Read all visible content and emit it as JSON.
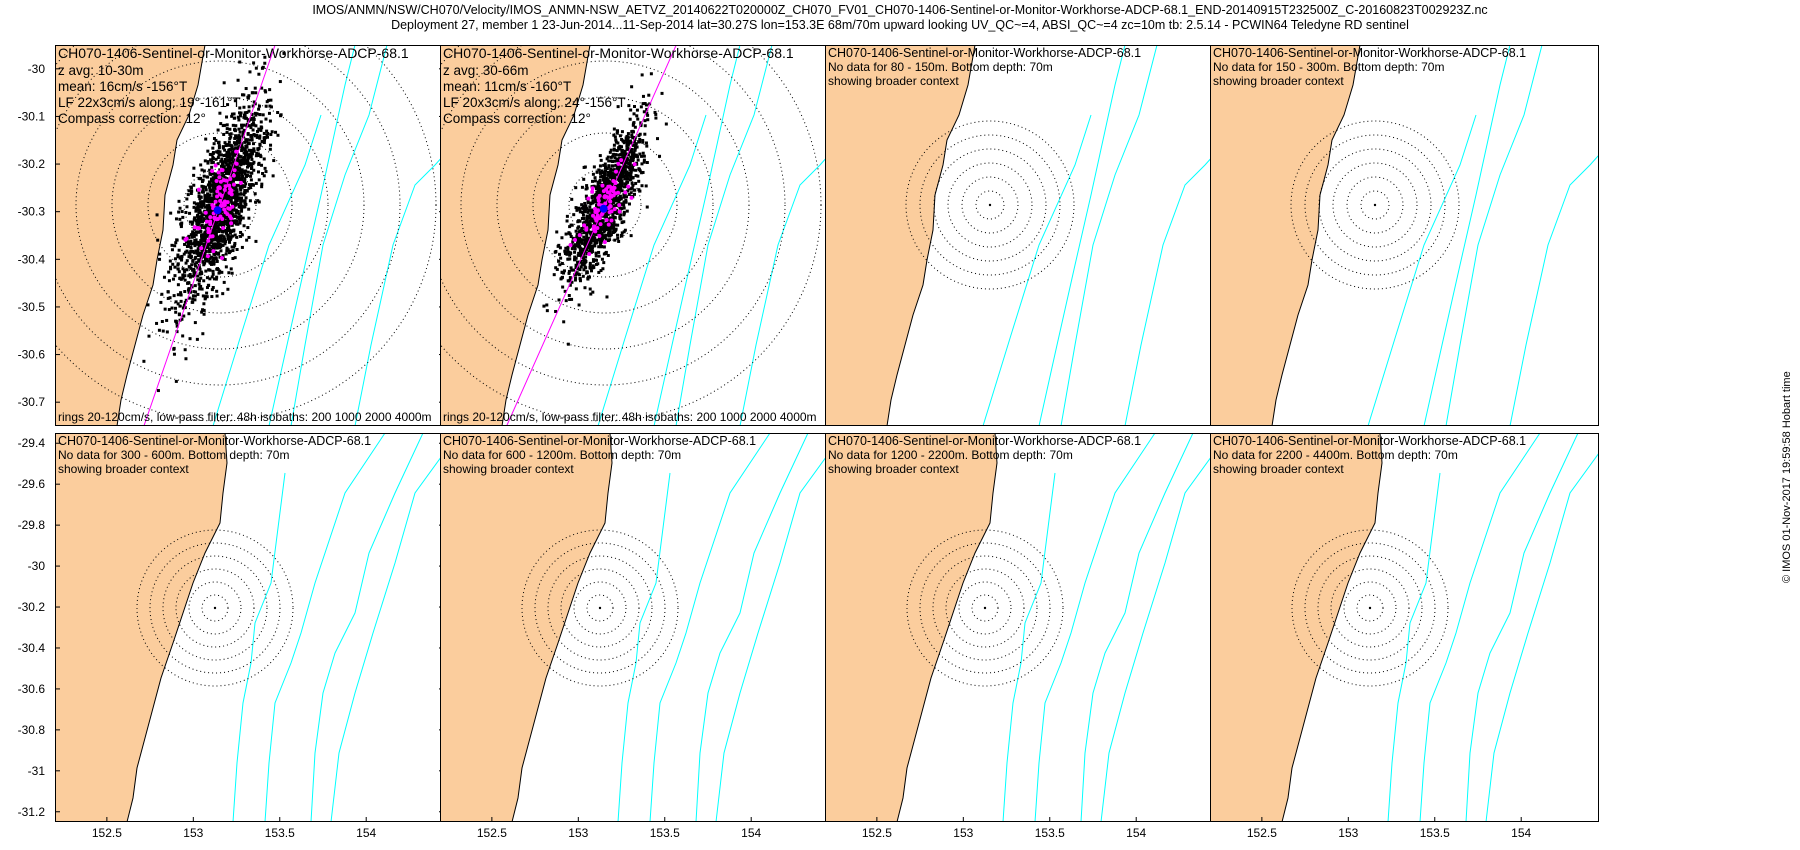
{
  "header": {
    "line1": "IMOS/ANMN/NSW/CH070/Velocity/IMOS_ANMN-NSW_AETVZ_20140622T020000Z_CH070_FV01_CH070-1406-Sentinel-or-Monitor-Workhorse-ADCP-68.1_END-20140915T232500Z_C-20160823T002923Z.nc",
    "line2": "Deployment 27, member 1 23-Jun-2014...11-Sep-2014 lat=30.27S lon=153.3E 68m/70m upward looking UV_QC~=4, ABSI_QC~=4 zc=10m tb: 2.5.14 - PCWIN64 Teledyne RD sentinel"
  },
  "footer": {
    "timestamp": "© IMOS 01-Nov-2017 19:59:58 Hobart time"
  },
  "colors": {
    "land": "#fbcd9d",
    "isobath": "#00ffff",
    "coast": "#000000",
    "fit_line": "#ff00ff",
    "scatter": "#000000",
    "daily": "#ff00ff",
    "mean": "#0000ff"
  },
  "chart_data": [
    {
      "id": "p1",
      "type": "scatter",
      "title": "CH070-1406-Sentinel-or-Monitor-Workhorse-ADCP-68.1",
      "lines": [
        "z avg: 10-30m",
        "mean: 16cm/s -156°T",
        "LF 22x3cm/s along: 19°-161°T",
        "Compass correction: 12°"
      ],
      "bottom_note": "rings 20-120cm/s, low-pass filter: 48h isobaths: 200 1000 2000 4000m",
      "ylim": [
        -30.75,
        -29.95
      ],
      "xlim": [
        152.2,
        154.45
      ],
      "yticks": [
        -30,
        -30.1,
        -30.2,
        -30.3,
        -30.4,
        -30.5,
        -30.6,
        -30.7
      ],
      "xticks": [],
      "data": {
        "scatter_orientation_deg_T": 19,
        "mean_speed_cm_s": 16,
        "mean_direction_deg_T": -156,
        "ellipse_major_cm_s": 22,
        "ellipse_minor_cm_s": 3,
        "rings_cm_s": [
          20,
          40,
          60,
          80,
          100,
          120
        ]
      }
    },
    {
      "id": "p2",
      "type": "scatter",
      "title": "CH070-1406-Sentinel-or-Monitor-Workhorse-ADCP-68.1",
      "lines": [
        "z avg: 30-66m",
        "mean: 11cm/s -160°T",
        "LF 20x3cm/s along: 24°-156°T",
        "Compass correction: 12°"
      ],
      "bottom_note": "rings 20-120cm/s, low-pass filter: 48h isobaths: 200 1000 2000 4000m",
      "ylim": [
        -30.75,
        -29.95
      ],
      "xlim": [
        152.2,
        154.45
      ],
      "yticks": [],
      "xticks": [],
      "data": {
        "scatter_orientation_deg_T": 24,
        "mean_speed_cm_s": 11,
        "mean_direction_deg_T": -160,
        "ellipse_major_cm_s": 20,
        "ellipse_minor_cm_s": 3,
        "rings_cm_s": [
          20,
          40,
          60,
          80,
          100,
          120
        ]
      }
    },
    {
      "id": "p3",
      "type": "map",
      "title": "CH070-1406-Sentinel-or-Monitor-Workhorse-ADCP-68.1",
      "lines": [
        "No data for 80 - 150m. Bottom depth: 70m",
        "showing broader context"
      ],
      "bottom_note": "",
      "ylim": [
        -30.75,
        -29.95
      ],
      "xlim": [
        152.2,
        154.45
      ],
      "yticks": [],
      "xticks": [],
      "data": null
    },
    {
      "id": "p4",
      "type": "map",
      "title": "CH070-1406-Sentinel-or-Monitor-Workhorse-ADCP-68.1",
      "lines": [
        "No data for 150 - 300m. Bottom depth: 70m",
        "showing broader context"
      ],
      "bottom_note": "",
      "ylim": [
        -30.75,
        -29.95
      ],
      "xlim": [
        152.2,
        154.45
      ],
      "yticks": [],
      "xticks": [],
      "data": null
    },
    {
      "id": "p5",
      "type": "map",
      "title": "CH070-1406-Sentinel-or-Monitor-Workhorse-ADCP-68.1",
      "lines": [
        "No data for 300 - 600m. Bottom depth: 70m",
        "showing broader context"
      ],
      "bottom_note": "",
      "ylim": [
        -31.25,
        -29.35
      ],
      "xlim": [
        152.2,
        154.45
      ],
      "yticks": [
        -29.4,
        -29.6,
        -29.8,
        -30,
        -30.2,
        -30.4,
        -30.6,
        -30.8,
        -31,
        -31.2
      ],
      "xticks": [
        152.5,
        153,
        153.5,
        154
      ],
      "data": null
    },
    {
      "id": "p6",
      "type": "map",
      "title": "CH070-1406-Sentinel-or-Monitor-Workhorse-ADCP-68.1",
      "lines": [
        "No data for 600 - 1200m. Bottom depth: 70m",
        "showing broader context"
      ],
      "bottom_note": "",
      "ylim": [
        -31.25,
        -29.35
      ],
      "xlim": [
        152.2,
        154.45
      ],
      "yticks": [],
      "xticks": [
        152.5,
        153,
        153.5,
        154
      ],
      "data": null
    },
    {
      "id": "p7",
      "type": "map",
      "title": "CH070-1406-Sentinel-or-Monitor-Workhorse-ADCP-68.1",
      "lines": [
        "No data for 1200 - 2200m. Bottom depth: 70m",
        "showing broader context"
      ],
      "bottom_note": "",
      "ylim": [
        -31.25,
        -29.35
      ],
      "xlim": [
        152.2,
        154.45
      ],
      "yticks": [],
      "xticks": [
        152.5,
        153,
        153.5,
        154
      ],
      "data": null
    },
    {
      "id": "p8",
      "type": "map",
      "title": "CH070-1406-Sentinel-or-Monitor-Workhorse-ADCP-68.1",
      "lines": [
        "No data for 2200 - 4400m. Bottom depth: 70m",
        "showing broader context"
      ],
      "bottom_note": "",
      "ylim": [
        -31.25,
        -29.35
      ],
      "xlim": [
        152.2,
        154.45
      ],
      "yticks": [],
      "xticks": [
        152.5,
        153,
        153.5,
        154
      ],
      "data": null
    }
  ]
}
